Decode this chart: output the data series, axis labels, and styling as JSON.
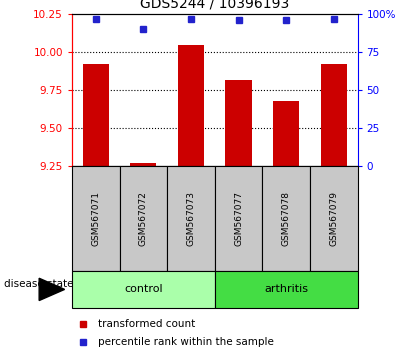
{
  "title": "GDS5244 / 10396193",
  "samples": [
    "GSM567071",
    "GSM567072",
    "GSM567073",
    "GSM567077",
    "GSM567078",
    "GSM567079"
  ],
  "red_values": [
    9.92,
    9.27,
    10.05,
    9.82,
    9.68,
    9.92
  ],
  "blue_values": [
    97,
    90,
    97,
    96,
    96,
    97
  ],
  "ylim_left": [
    9.25,
    10.25
  ],
  "ylim_right": [
    0,
    100
  ],
  "yticks_left": [
    9.25,
    9.5,
    9.75,
    10.0,
    10.25
  ],
  "yticks_right": [
    0,
    25,
    50,
    75,
    100
  ],
  "ytick_labels_right": [
    "0",
    "25",
    "50",
    "75",
    "100%"
  ],
  "bar_color": "#CC0000",
  "dot_color": "#2222CC",
  "bar_bottom": 9.25,
  "control_color": "#aaffaa",
  "arthritis_color": "#44dd44",
  "label_area_color": "#C8C8C8",
  "title_fontsize": 10,
  "tick_fontsize": 7.5,
  "sample_fontsize": 6.5,
  "legend_fontsize": 7.5,
  "legend_red_label": "transformed count",
  "legend_blue_label": "percentile rank within the sample",
  "disease_state_label": "disease state",
  "control_label": "control",
  "arthritis_label": "arthritis"
}
